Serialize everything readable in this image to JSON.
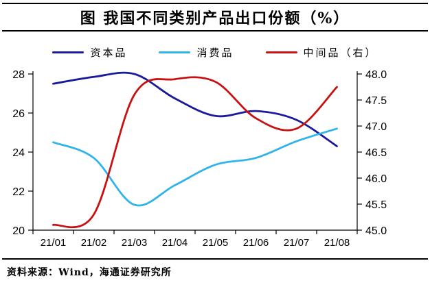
{
  "page": {
    "source": "资料来源：Wind，海通证券研究所"
  },
  "chart_data": {
    "type": "line",
    "title": "图 我国不同类别产品出口份额（%）",
    "categories": [
      "21/01",
      "21/02",
      "21/03",
      "21/04",
      "21/05",
      "21/06",
      "21/07",
      "21/08"
    ],
    "series": [
      {
        "name": "资本品",
        "axis": "left",
        "color": "#1A1A9B",
        "values": [
          27.5,
          27.85,
          28.0,
          26.75,
          25.85,
          26.1,
          25.65,
          24.3
        ]
      },
      {
        "name": "消费品",
        "axis": "left",
        "color": "#2FB4E9",
        "values": [
          24.5,
          23.7,
          21.3,
          22.3,
          23.35,
          23.7,
          24.55,
          25.2
        ]
      },
      {
        "name": "中间品（右）",
        "axis": "right",
        "color": "#C81111",
        "values": [
          45.1,
          45.3,
          47.6,
          47.9,
          47.85,
          47.15,
          46.95,
          47.75
        ]
      }
    ],
    "left_axis": {
      "min": 20,
      "max": 28,
      "ticks": [
        28,
        26,
        24,
        22,
        20
      ],
      "tick_labels": [
        "28",
        "26",
        "24",
        "22",
        "20"
      ]
    },
    "right_axis": {
      "min": 45,
      "max": 48,
      "ticks": [
        48.0,
        47.5,
        47.0,
        46.5,
        46.0,
        45.5,
        45.0
      ],
      "tick_labels": [
        "48.0",
        "47.5",
        "47.0",
        "46.5",
        "46.0",
        "45.5",
        "45.0"
      ]
    },
    "grid": false,
    "legend_position": "top"
  }
}
